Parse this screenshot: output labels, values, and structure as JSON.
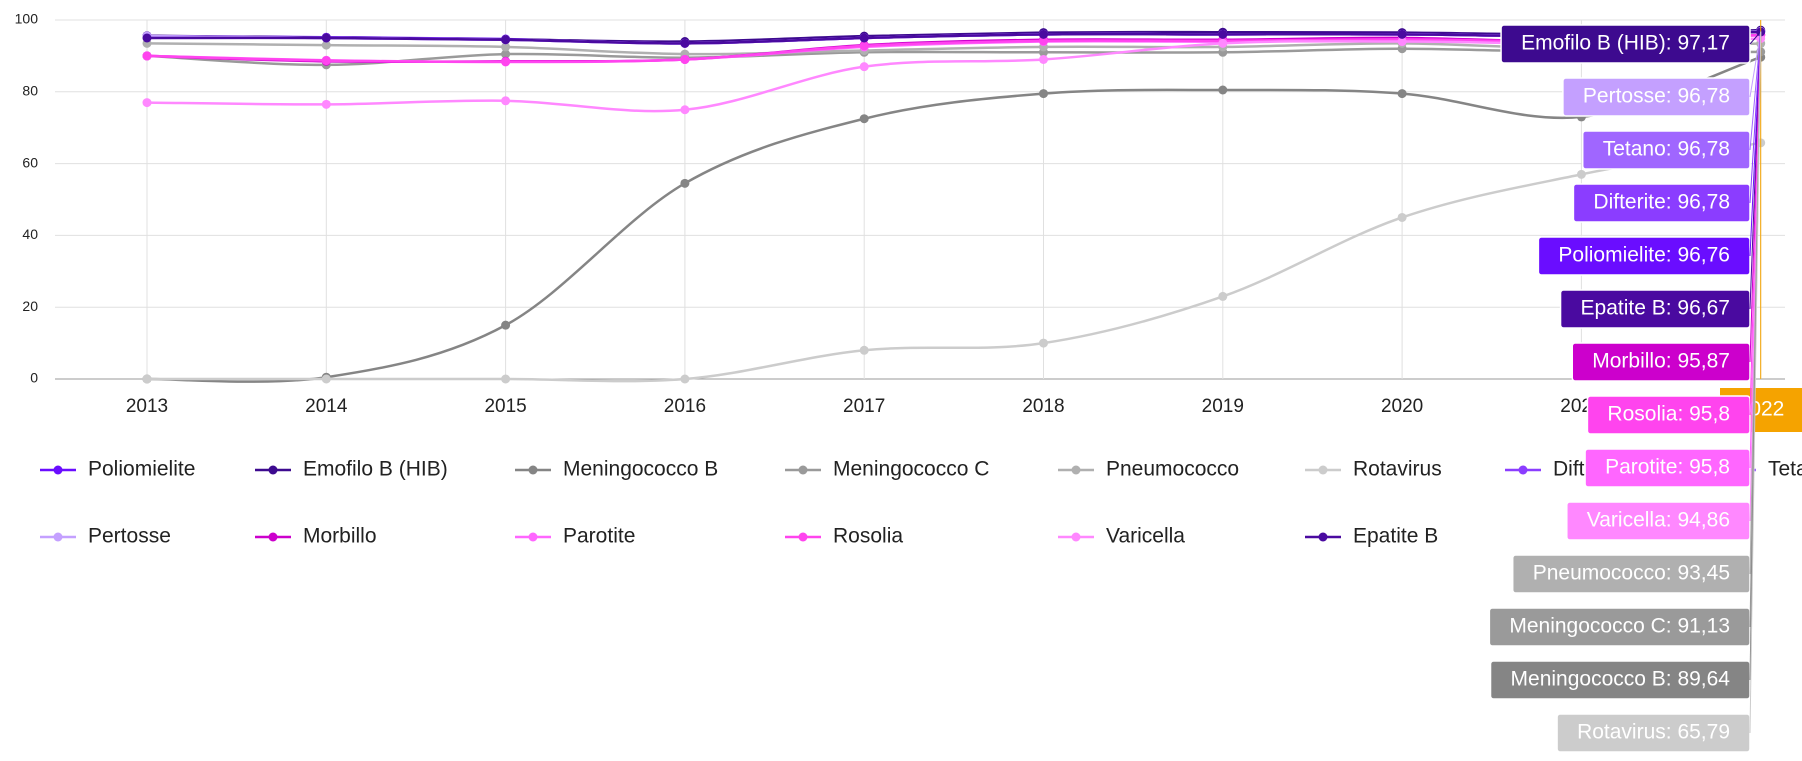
{
  "chart_data": {
    "type": "line",
    "categories": [
      "2013",
      "2014",
      "2015",
      "2016",
      "2017",
      "2018",
      "2019",
      "2020",
      "2021",
      "2022"
    ],
    "ylim": [
      0,
      100
    ],
    "yticks": [
      0,
      20,
      40,
      60,
      80,
      100
    ],
    "grid": true,
    "series": [
      {
        "name": "Poliomielite",
        "color": "#6a0dff",
        "values": [
          95.5,
          95.2,
          94.7,
          93.5,
          95,
          96,
          96,
          96,
          95.5,
          96.76
        ]
      },
      {
        "name": "Emofilo B (HIB)",
        "color": "#3d0a8f",
        "values": [
          95.6,
          95.1,
          94.6,
          94,
          95.5,
          96.5,
          96.6,
          96.5,
          96,
          97.17
        ]
      },
      {
        "name": "Meningococco B",
        "color": "#858585",
        "values": [
          0,
          0.5,
          15,
          54.5,
          72.5,
          79.5,
          80.5,
          79.5,
          73,
          89.64
        ]
      },
      {
        "name": "Meningococco C",
        "color": "#9a9a9a",
        "values": [
          90,
          87.5,
          90.5,
          89.5,
          91,
          91,
          91,
          92,
          91,
          91.13
        ]
      },
      {
        "name": "Pneumococco",
        "color": "#b0b0b0",
        "values": [
          93.5,
          93,
          92.5,
          90.5,
          91.5,
          92.5,
          92.5,
          93.5,
          92,
          93.45
        ]
      },
      {
        "name": "Rotavirus",
        "color": "#cccccc",
        "values": [
          0,
          0,
          0,
          0,
          8,
          10,
          23,
          45,
          57,
          65.79
        ]
      },
      {
        "name": "Difterite",
        "color": "#8b3dff",
        "values": [
          95.5,
          95,
          94.5,
          93.5,
          95,
          96,
          96,
          96,
          95.5,
          96.78
        ]
      },
      {
        "name": "Tetano",
        "color": "#a066ff",
        "values": [
          95.5,
          95,
          94.5,
          93.5,
          95,
          96,
          96,
          96,
          95.5,
          96.78
        ]
      },
      {
        "name": "Pertosse",
        "color": "#c4a0ff",
        "values": [
          95.5,
          95,
          94.5,
          93.5,
          95,
          96,
          96,
          96,
          95.5,
          96.78
        ]
      },
      {
        "name": "Morbillo",
        "color": "#cc00cc",
        "values": [
          90,
          88.5,
          88.5,
          89,
          93,
          94.5,
          94.5,
          95,
          94,
          95.87
        ]
      },
      {
        "name": "Parotite",
        "color": "#ff66ff",
        "values": [
          90,
          88.8,
          88.3,
          89,
          92.5,
          94,
          94,
          94.5,
          94,
          95.8
        ]
      },
      {
        "name": "Rosolia",
        "color": "#ff44ee",
        "values": [
          90,
          88.7,
          88.4,
          89,
          92.8,
          94.2,
          94.2,
          94.6,
          94,
          95.8
        ]
      },
      {
        "name": "Varicella",
        "color": "#ff88ff",
        "values": [
          77,
          76.5,
          77.5,
          75,
          87,
          89,
          93.5,
          94,
          93.5,
          94.86
        ]
      },
      {
        "name": "Epatite B",
        "color": "#4a0aa0",
        "values": [
          95,
          95,
          94.5,
          93.5,
          95,
          96,
          96,
          96,
          95.5,
          96.67
        ]
      }
    ],
    "tooltip": {
      "items": [
        {
          "label": "Emofilo B (HIB): 97,17",
          "color": "#3d0a8f"
        },
        {
          "label": "Pertosse: 96,78",
          "color": "#c4a0ff"
        },
        {
          "label": "Tetano: 96,78",
          "color": "#a066ff"
        },
        {
          "label": "Difterite: 96,78",
          "color": "#8b3dff"
        },
        {
          "label": "Poliomielite: 96,76",
          "color": "#6a0dff"
        },
        {
          "label": "Epatite B: 96,67",
          "color": "#4a0aa0"
        },
        {
          "label": "Morbillo: 95,87",
          "color": "#cc00cc"
        },
        {
          "label": "Rosolia: 95,8",
          "color": "#ff44ee"
        },
        {
          "label": "Parotite: 95,8",
          "color": "#ff66ff"
        },
        {
          "label": "Varicella: 94,86",
          "color": "#ff88ff"
        },
        {
          "label": "Pneumococco: 93,45",
          "color": "#b0b0b0"
        },
        {
          "label": "Meningococco C: 91,13",
          "color": "#9a9a9a"
        },
        {
          "label": "Meningococco B: 89,64",
          "color": "#858585"
        },
        {
          "label": "Rotavirus: 65,79",
          "color": "#cccccc"
        }
      ]
    }
  }
}
